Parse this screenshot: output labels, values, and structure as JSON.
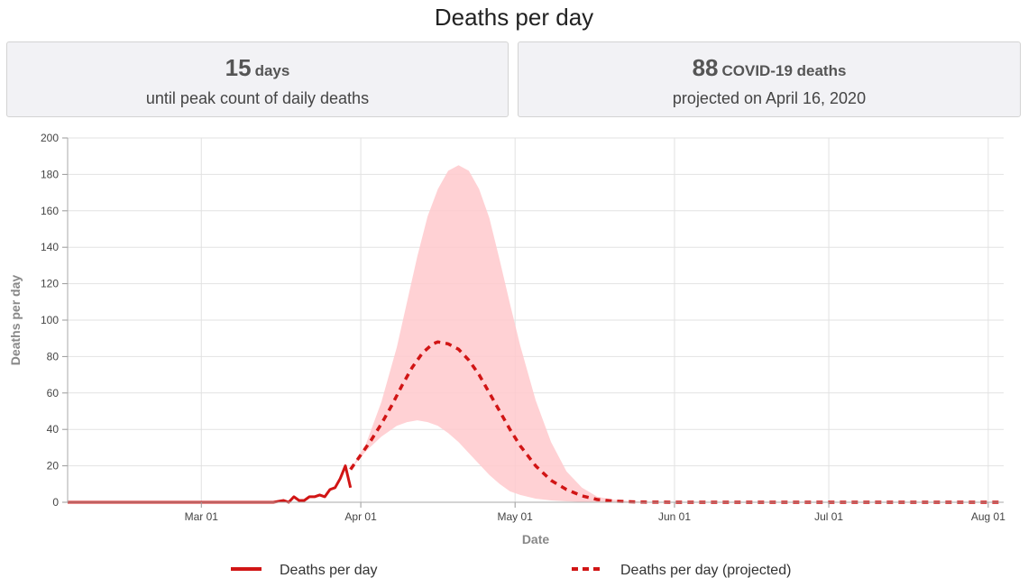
{
  "title": "Deaths per day",
  "cards": [
    {
      "number": "15",
      "unit": "days",
      "subtitle": "until peak count of daily deaths"
    },
    {
      "number": "88",
      "unit": "COVID-19 deaths",
      "subtitle": "projected on April 16, 2020"
    }
  ],
  "colors": {
    "line": "#d11515",
    "band": "#ffc9cc",
    "grid": "#e2e2e2"
  },
  "chart_data": {
    "type": "line",
    "xlabel": "Date",
    "ylabel": "Deaths per day",
    "x_range": [
      "2020-02-04",
      "2020-08-04"
    ],
    "ylim": [
      0,
      200
    ],
    "y_ticks": [
      0,
      20,
      40,
      60,
      80,
      100,
      120,
      140,
      160,
      180,
      200
    ],
    "x_ticks": [
      {
        "date": "2020-03-01",
        "label": "Mar 01"
      },
      {
        "date": "2020-04-01",
        "label": "Apr 01"
      },
      {
        "date": "2020-05-01",
        "label": "May 01"
      },
      {
        "date": "2020-06-01",
        "label": "Jun 01"
      },
      {
        "date": "2020-07-01",
        "label": "Jul 01"
      },
      {
        "date": "2020-08-01",
        "label": "Aug 01"
      }
    ],
    "grid": true,
    "legend_position": "bottom",
    "series": [
      {
        "name": "Deaths per day",
        "style": "solid",
        "x": [
          "2020-02-04",
          "2020-03-15",
          "2020-03-17",
          "2020-03-18",
          "2020-03-19",
          "2020-03-20",
          "2020-03-21",
          "2020-03-22",
          "2020-03-23",
          "2020-03-24",
          "2020-03-25",
          "2020-03-26",
          "2020-03-27",
          "2020-03-28",
          "2020-03-29",
          "2020-03-30"
        ],
        "y": [
          0,
          0,
          1,
          0,
          3,
          1,
          1,
          3,
          3,
          4,
          3,
          7,
          8,
          13,
          20,
          8
        ]
      },
      {
        "name": "Deaths per day (projected)",
        "style": "dashed",
        "x": [
          "2020-03-30",
          "2020-04-01",
          "2020-04-03",
          "2020-04-05",
          "2020-04-07",
          "2020-04-09",
          "2020-04-11",
          "2020-04-13",
          "2020-04-15",
          "2020-04-16",
          "2020-04-18",
          "2020-04-20",
          "2020-04-22",
          "2020-04-24",
          "2020-04-26",
          "2020-04-28",
          "2020-04-30",
          "2020-05-02",
          "2020-05-05",
          "2020-05-08",
          "2020-05-11",
          "2020-05-14",
          "2020-05-17",
          "2020-05-20",
          "2020-05-23",
          "2020-05-26",
          "2020-06-01",
          "2020-08-04"
        ],
        "y": [
          18,
          26,
          34,
          43,
          53,
          64,
          74,
          82,
          87,
          88,
          87,
          84,
          78,
          70,
          60,
          50,
          40,
          31,
          20,
          12,
          7,
          3.5,
          1.5,
          0.7,
          0.3,
          0.1,
          0,
          0
        ]
      }
    ],
    "uncertainty_band": {
      "x": [
        "2020-03-30",
        "2020-04-02",
        "2020-04-05",
        "2020-04-08",
        "2020-04-10",
        "2020-04-12",
        "2020-04-14",
        "2020-04-16",
        "2020-04-18",
        "2020-04-20",
        "2020-04-22",
        "2020-04-24",
        "2020-04-26",
        "2020-04-28",
        "2020-04-30",
        "2020-05-02",
        "2020-05-05",
        "2020-05-08",
        "2020-05-11",
        "2020-05-14",
        "2020-05-17",
        "2020-05-20",
        "2020-05-23",
        "2020-05-26",
        "2020-06-01",
        "2020-08-04"
      ],
      "lower": [
        18,
        28,
        36,
        42,
        44,
        45,
        44,
        42,
        38,
        33,
        27,
        21,
        15,
        10,
        6,
        4,
        2,
        1,
        0.5,
        0.2,
        0,
        0,
        0,
        0,
        0,
        0
      ],
      "upper": [
        18,
        32,
        55,
        85,
        110,
        135,
        157,
        172,
        182,
        185,
        182,
        172,
        156,
        133,
        109,
        86,
        56,
        33,
        17,
        8,
        3,
        1.5,
        0.7,
        0.3,
        0,
        0
      ]
    }
  }
}
